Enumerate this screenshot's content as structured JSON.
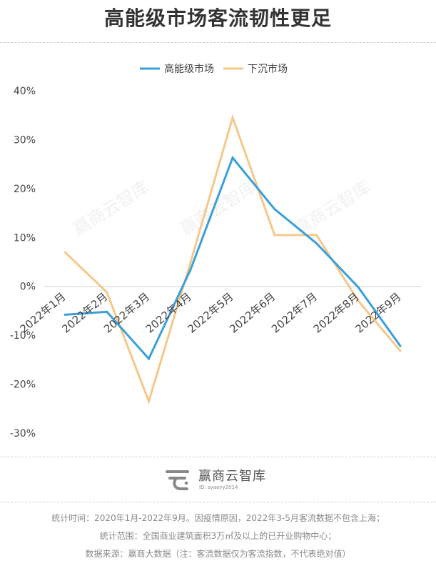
{
  "title": "高能级市场客流韧性更足",
  "watermark": "赢商云智库",
  "brand": {
    "name": "赢商云智库",
    "id": "ID: syaoyy2014"
  },
  "notes": [
    "统计时间：2020年1月-2022年9月。因疫情原因，2022年3-5月客流数据不包含上海；",
    "统计范围：全国商业建筑面积3万㎡及以上的已开业购物中心；",
    "数据来源：赢商大数据（注：客流数据仅为客流指数，不代表绝对值）"
  ],
  "chart_data": {
    "type": "line",
    "categories": [
      "2022年1月",
      "2022年2月",
      "2022年3月",
      "2022年4月",
      "2022年5月",
      "2022年6月",
      "2022年7月",
      "2022年8月",
      "2022年9月"
    ],
    "series": [
      {
        "name": "高能级市场",
        "color": "#3b9fd9",
        "values": [
          -5.8,
          -5.2,
          -14.8,
          3.5,
          26.3,
          15.8,
          8.8,
          -0.2,
          -12.2
        ]
      },
      {
        "name": "下沉市场",
        "color": "#f5c88a",
        "values": [
          7.0,
          -1.2,
          -23.5,
          5.0,
          34.5,
          10.5,
          10.5,
          -3.0,
          -13.2
        ]
      }
    ],
    "ylim": [
      -30,
      40
    ],
    "yticks": [
      40,
      30,
      20,
      10,
      0,
      -10,
      -20,
      -30
    ],
    "ytick_labels": [
      "40%",
      "30%",
      "20%",
      "10%",
      "0%",
      "-10%",
      "-20%",
      "-30%"
    ],
    "legend_position": "top-center",
    "grid": false,
    "zero_line": true
  }
}
